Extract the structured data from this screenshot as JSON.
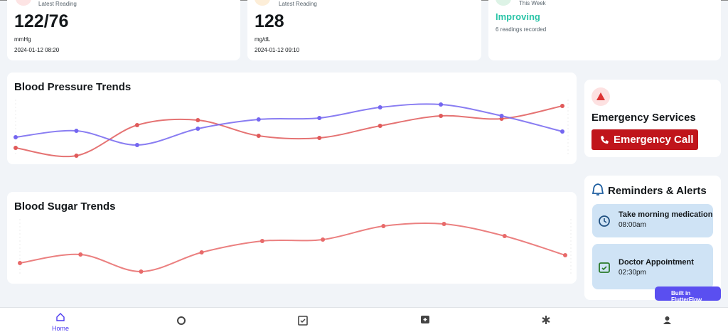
{
  "summary_cards": [
    {
      "label": "Latest Reading",
      "value": "122/76",
      "unit": "mmHg",
      "timestamp": "2024-01-12 08:20"
    },
    {
      "label": "Latest Reading",
      "value": "128",
      "unit": "mg/dL",
      "timestamp": "2024-01-12 09:10"
    },
    {
      "label": "This Week",
      "status": "Improving",
      "note": "6 readings recorded"
    }
  ],
  "chart_data": [
    {
      "type": "line",
      "title": "Blood Pressure Trends",
      "ylim": [
        100,
        140
      ],
      "series": [
        {
          "color": "#e05a5a",
          "values": [
            106,
            100.5,
            122,
            125.5,
            114.5,
            113,
            121.5,
            128.5,
            126.5,
            135.5
          ]
        },
        {
          "color": "#7466f0",
          "values": [
            113.5,
            118,
            108,
            119.5,
            126,
            127,
            134.5,
            136.5,
            128.5,
            117.5
          ]
        }
      ]
    },
    {
      "type": "line",
      "title": "Blood Sugar Trends",
      "ylim": [
        80,
        160
      ],
      "series": [
        {
          "color": "#e86a6a",
          "values": [
            98,
            110,
            86,
            113,
            129,
            131,
            150,
            153,
            136,
            109
          ]
        }
      ]
    }
  ],
  "emergency": {
    "title": "Emergency Services",
    "button": "Emergency Call"
  },
  "reminders": {
    "title": "Reminders & Alerts",
    "items": [
      {
        "title": "Take morning medication",
        "time": "08:00am"
      },
      {
        "title": "Doctor Appointment",
        "time": "02:30pm"
      }
    ]
  },
  "badge": "Built in FlutterFlow",
  "nav": {
    "home": "Home"
  }
}
